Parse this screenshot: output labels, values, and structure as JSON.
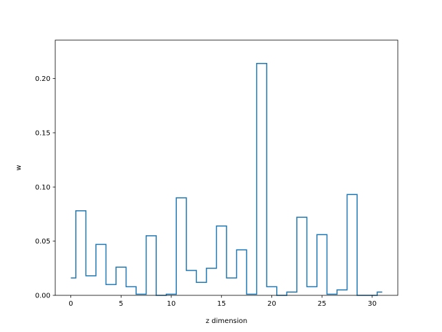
{
  "chart_data": {
    "type": "line",
    "drawstyle": "steps-mid",
    "title": "",
    "xlabel": "z dimension",
    "ylabel": "w",
    "xlim": [
      -1.55,
      32.55
    ],
    "ylim": [
      0,
      0.2355
    ],
    "x_ticks": [
      0,
      5,
      10,
      15,
      20,
      25,
      30
    ],
    "y_ticks": [
      0.0,
      0.05,
      0.1,
      0.15,
      0.2
    ],
    "y_tick_labels": [
      "0.00",
      "0.05",
      "0.10",
      "0.15",
      "0.20"
    ],
    "grid": false,
    "legend": "none",
    "series": [
      {
        "color": "#1f77b4",
        "x": [
          0,
          1,
          2,
          3,
          4,
          5,
          6,
          7,
          8,
          9,
          10,
          11,
          12,
          13,
          14,
          15,
          16,
          17,
          18,
          19,
          20,
          21,
          22,
          23,
          24,
          25,
          26,
          27,
          28,
          29,
          30,
          31
        ],
        "values": [
          0.016,
          0.078,
          0.018,
          0.047,
          0.01,
          0.026,
          0.008,
          0.001,
          0.055,
          0.0,
          0.001,
          0.09,
          0.023,
          0.012,
          0.025,
          0.064,
          0.016,
          0.042,
          0.001,
          0.214,
          0.008,
          0.0,
          0.003,
          0.072,
          0.008,
          0.056,
          0.001,
          0.005,
          0.093,
          0.0,
          0.0,
          0.003
        ]
      }
    ]
  }
}
